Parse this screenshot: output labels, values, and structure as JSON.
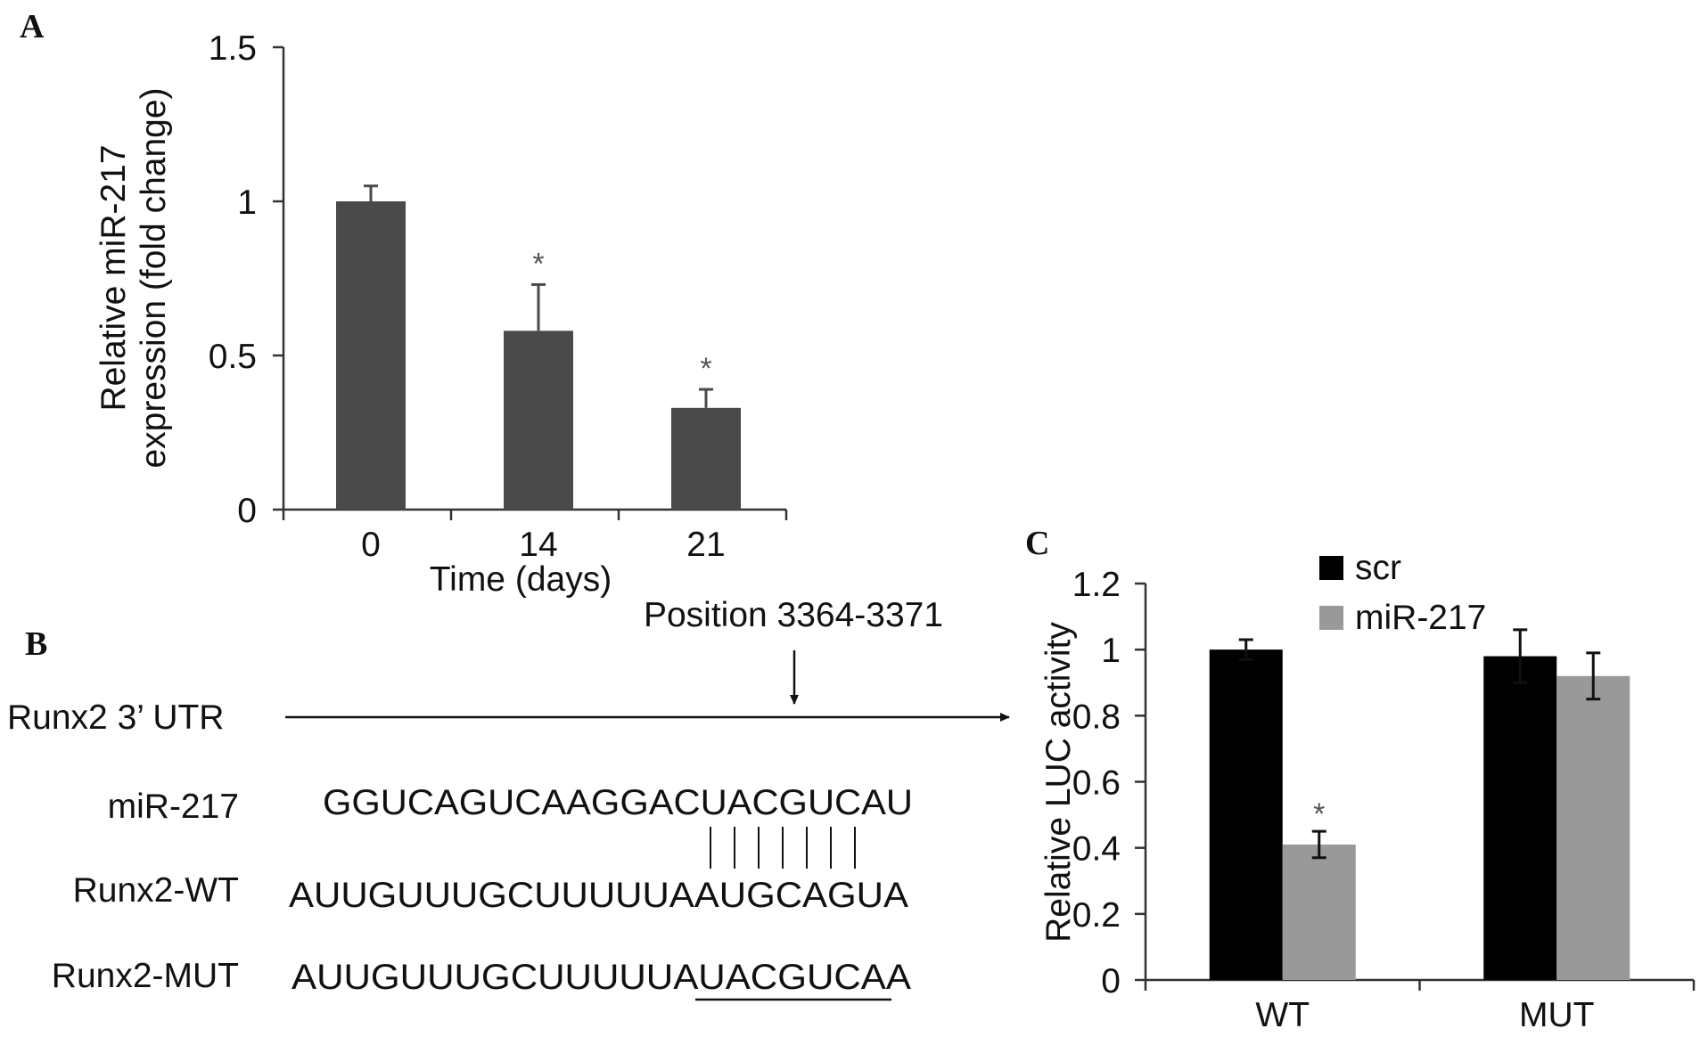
{
  "panels": {
    "a": {
      "letter": "A"
    },
    "b": {
      "letter": "B",
      "utr_label": "Runx2 3’ UTR",
      "position_label": "Position 3364-3371",
      "rows": [
        {
          "label": "miR-217",
          "sequence": "GGUCAGUCAAGGACUACGUCAU"
        },
        {
          "label": "Runx2-WT",
          "sequence": "AUUGUUUGCUUUUUAAUGCAGUA"
        },
        {
          "label": "Runx2-MUT",
          "sequence": "AUUGUUUGCUUUUUAUACGUCAA"
        }
      ],
      "pair_count": 7
    },
    "c": {
      "letter": "C"
    }
  },
  "chart_data": [
    {
      "type": "bar",
      "panel": "A",
      "categories": [
        "0",
        "14",
        "21"
      ],
      "values": [
        1.0,
        0.58,
        0.33
      ],
      "errors": [
        0.05,
        0.15,
        0.06
      ],
      "significance": [
        "",
        "*",
        "*"
      ],
      "xlabel": "Time (days)",
      "ylabel_lines": [
        "Relative miR-217",
        "expression (fold change)"
      ],
      "ylim": [
        0,
        1.5
      ],
      "yticks": [
        "0",
        "0.5",
        "1",
        "1.5"
      ],
      "ytick_values": [
        0,
        0.5,
        1,
        1.5
      ],
      "color": "#4a4a4a",
      "grid": false,
      "legend": false
    },
    {
      "type": "bar",
      "panel": "C",
      "categories": [
        "WT",
        "MUT"
      ],
      "series": [
        {
          "name": "scr",
          "values": [
            1.0,
            0.98
          ],
          "errors": [
            0.03,
            0.08
          ],
          "color": "#000000",
          "significance": [
            "",
            ""
          ]
        },
        {
          "name": "miR-217",
          "values": [
            0.41,
            0.92
          ],
          "errors": [
            0.04,
            0.07
          ],
          "color": "#999999",
          "significance": [
            "*",
            ""
          ]
        }
      ],
      "ylabel": "Relative LUC activity",
      "ylim": [
        0,
        1.2
      ],
      "yticks": [
        "0",
        "0.2",
        "0.4",
        "0.6",
        "0.8",
        "1",
        "1.2"
      ],
      "ytick_values": [
        0,
        0.2,
        0.4,
        0.6,
        0.8,
        1.0,
        1.2
      ],
      "grid": false,
      "legend": "top-center"
    }
  ]
}
